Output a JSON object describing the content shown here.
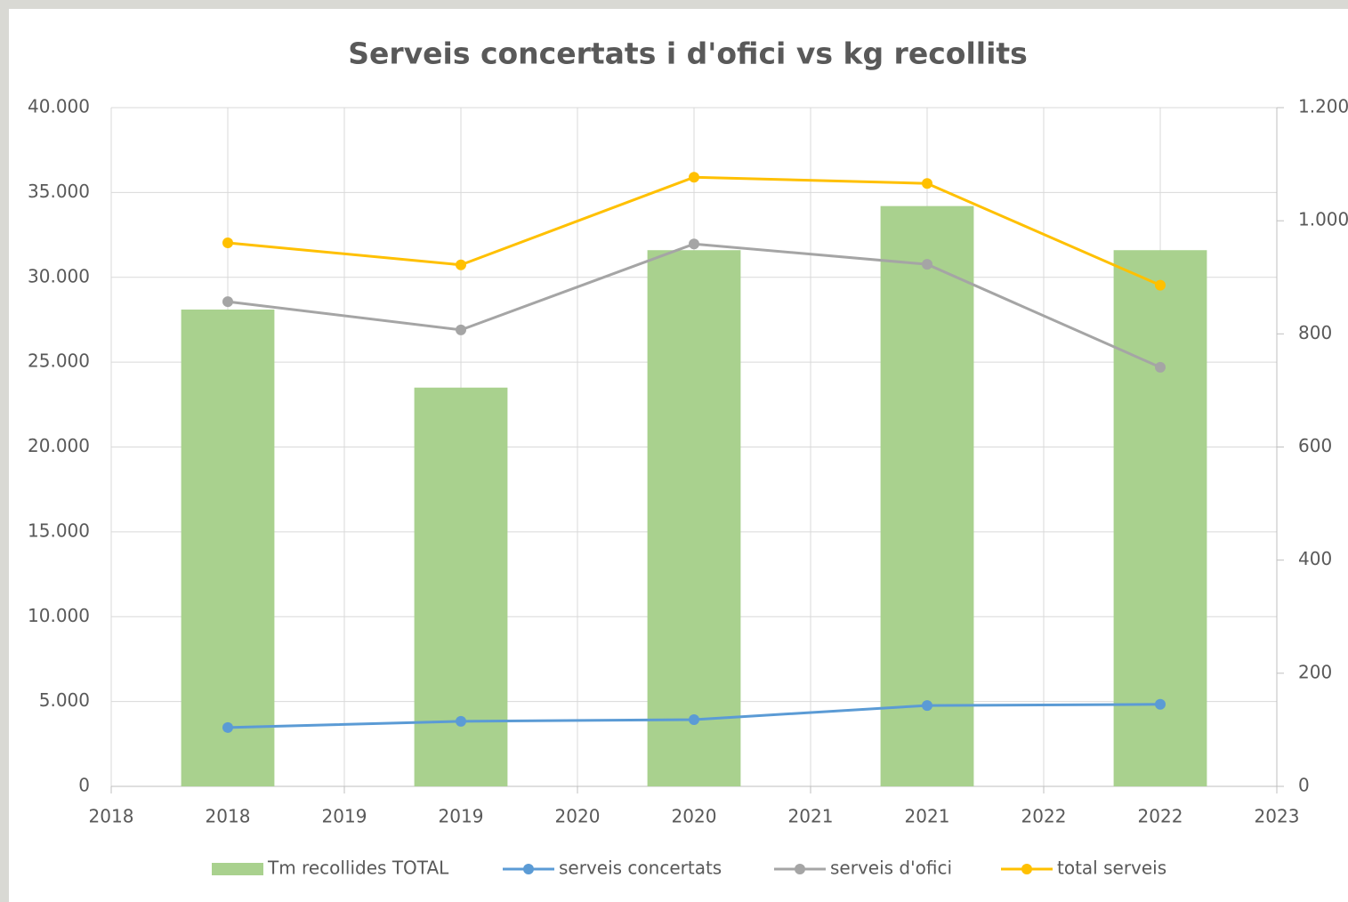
{
  "chart_data": {
    "type": "combo",
    "title": "Serveis concertats i d'ofici vs kg recollits",
    "categories": [
      "2018",
      "2019",
      "2020",
      "2021",
      "2022"
    ],
    "xlim": [
      2018,
      2023
    ],
    "xticks": [
      2018,
      2019,
      2020,
      2021,
      2022,
      2023
    ],
    "ylim": [
      0,
      40000
    ],
    "yticks": [
      0,
      {
        "value": 5000,
        "label": "5.000"
      },
      {
        "value": 10000,
        "label": "10.000"
      },
      {
        "value": 15000,
        "label": "15.000"
      },
      {
        "value": 20000,
        "label": "20.000"
      },
      {
        "value": 25000,
        "label": "25.000"
      },
      {
        "value": 30000,
        "label": "30.000"
      },
      {
        "value": 35000,
        "label": "35.000"
      },
      {
        "value": 40000,
        "label": "40.000"
      }
    ],
    "y2lim": [
      0,
      1200
    ],
    "y2ticks": [
      0,
      200,
      400,
      600,
      800,
      {
        "value": 1000,
        "label": "1.000"
      },
      {
        "value": 1200,
        "label": "1.200"
      }
    ],
    "grid": true,
    "legend": "bottom",
    "series": [
      {
        "name": "Tm recollides TOTAL",
        "type": "bar",
        "color": "#a9d18e",
        "values": [
          28100,
          23500,
          31600,
          34200,
          31600
        ]
      },
      {
        "name": "serveis concertats",
        "type": "line",
        "axis": "y2",
        "color": "#5b9bd5",
        "values": [
          104,
          115,
          118,
          143,
          145
        ]
      },
      {
        "name": "serveis d'ofici",
        "type": "line",
        "axis": "y2",
        "color": "#a5a5a5",
        "values": [
          857,
          807,
          959,
          923,
          741
        ]
      },
      {
        "name": "total serveis",
        "type": "line",
        "axis": "y2",
        "color": "#ffc000",
        "values": [
          961,
          922,
          1077,
          1066,
          886
        ]
      }
    ]
  }
}
